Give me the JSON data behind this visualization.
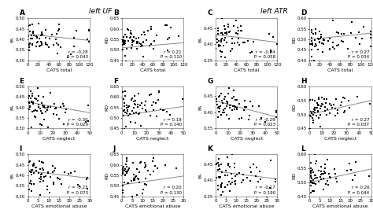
{
  "title_left": "left UF",
  "title_right": "left ATR",
  "panels": [
    {
      "label": "A",
      "col": 0,
      "row": 0,
      "ylabel": "FA",
      "xlabel": "CATS total",
      "xlim": [
        0,
        120
      ],
      "ylim": [
        0.3,
        0.5
      ],
      "yticks": [
        0.3,
        0.35,
        0.4,
        0.45,
        0.5
      ],
      "xticks": [
        0,
        20,
        40,
        60,
        80,
        100,
        120
      ],
      "r": -0.28,
      "p": 0.043,
      "slope": -0.00025,
      "intercept": 0.425
    },
    {
      "label": "B",
      "col": 1,
      "row": 0,
      "ylabel": "RD",
      "xlabel": "CATS total",
      "xlim": [
        0,
        120
      ],
      "ylim": [
        0.45,
        0.65
      ],
      "yticks": [
        0.45,
        0.5,
        0.55,
        0.6,
        0.65
      ],
      "xticks": [
        0,
        20,
        40,
        60,
        80,
        100,
        120
      ],
      "r": 0.21,
      "p": 0.11,
      "slope": 0.0002,
      "intercept": 0.51
    },
    {
      "label": "C",
      "col": 2,
      "row": 0,
      "ylabel": "FA",
      "xlabel": "CATS total",
      "xlim": [
        0,
        120
      ],
      "ylim": [
        0.35,
        0.48
      ],
      "yticks": [
        0.35,
        0.4,
        0.45
      ],
      "xticks": [
        0,
        20,
        40,
        60,
        80,
        100,
        120
      ],
      "r": -0.24,
      "p": 0.058,
      "slope": -0.0002,
      "intercept": 0.43
    },
    {
      "label": "D",
      "col": 3,
      "row": 0,
      "ylabel": "RD",
      "xlabel": "CATS total",
      "xlim": [
        0,
        120
      ],
      "ylim": [
        0.4,
        0.6
      ],
      "yticks": [
        0.4,
        0.45,
        0.5,
        0.55,
        0.6
      ],
      "xticks": [
        0,
        20,
        40,
        60,
        80,
        100,
        120
      ],
      "r": 0.27,
      "p": 0.034,
      "slope": 0.00025,
      "intercept": 0.5
    },
    {
      "label": "E",
      "col": 0,
      "row": 1,
      "ylabel": "FA",
      "xlabel": "CATS neglect",
      "xlim": [
        0,
        50
      ],
      "ylim": [
        0.3,
        0.5
      ],
      "yticks": [
        0.3,
        0.35,
        0.4,
        0.45,
        0.5
      ],
      "xticks": [
        0,
        10,
        20,
        30,
        40,
        50
      ],
      "r": -0.3,
      "p": 0.02,
      "slope": -0.001,
      "intercept": 0.425
    },
    {
      "label": "F",
      "col": 1,
      "row": 1,
      "ylabel": "RD",
      "xlabel": "CATS neglect",
      "xlim": [
        0,
        50
      ],
      "ylim": [
        0.45,
        0.65
      ],
      "yticks": [
        0.45,
        0.5,
        0.55,
        0.6,
        0.65
      ],
      "xticks": [
        0,
        10,
        20,
        30,
        40,
        50
      ],
      "r": 0.19,
      "p": 0.14,
      "slope": 0.0009,
      "intercept": 0.51
    },
    {
      "label": "G",
      "col": 2,
      "row": 1,
      "ylabel": "FA",
      "xlabel": "CATS neglect",
      "xlim": [
        0,
        50
      ],
      "ylim": [
        0.35,
        0.48
      ],
      "yticks": [
        0.35,
        0.4,
        0.45
      ],
      "xticks": [
        0,
        10,
        20,
        30,
        40,
        50
      ],
      "r": -0.29,
      "p": 0.023,
      "slope": -0.001,
      "intercept": 0.435
    },
    {
      "label": "H",
      "col": 3,
      "row": 1,
      "ylabel": "RD",
      "xlabel": "CATS neglect",
      "xlim": [
        0,
        50
      ],
      "ylim": [
        0.45,
        0.6
      ],
      "yticks": [
        0.45,
        0.5,
        0.55,
        0.6
      ],
      "xticks": [
        0,
        10,
        20,
        30,
        40,
        50
      ],
      "r": 0.27,
      "p": 0.037,
      "slope": 0.001,
      "intercept": 0.5
    },
    {
      "label": "I",
      "col": 0,
      "row": 2,
      "ylabel": "FA",
      "xlabel": "CATS emotional abuse",
      "xlim": [
        0,
        30
      ],
      "ylim": [
        0.3,
        0.5
      ],
      "yticks": [
        0.3,
        0.35,
        0.4,
        0.45,
        0.5
      ],
      "xticks": [
        0,
        5,
        10,
        15,
        20,
        25,
        30
      ],
      "r": -0.23,
      "p": 0.073,
      "slope": -0.0012,
      "intercept": 0.422
    },
    {
      "label": "J",
      "col": 1,
      "row": 2,
      "ylabel": "RD",
      "xlabel": "CATS emotional abuse",
      "xlim": [
        0,
        30
      ],
      "ylim": [
        0.45,
        0.65
      ],
      "yticks": [
        0.45,
        0.5,
        0.55,
        0.6,
        0.65
      ],
      "xticks": [
        0,
        5,
        10,
        15,
        20,
        25,
        30
      ],
      "r": 0.2,
      "p": 0.13,
      "slope": 0.0014,
      "intercept": 0.505
    },
    {
      "label": "K",
      "col": 2,
      "row": 2,
      "ylabel": "FA",
      "xlabel": "CATS emotional abuse",
      "xlim": [
        0,
        30
      ],
      "ylim": [
        0.35,
        0.48
      ],
      "yticks": [
        0.35,
        0.4,
        0.45
      ],
      "xticks": [
        0,
        5,
        10,
        15,
        20,
        25,
        30
      ],
      "r": -0.17,
      "p": 0.19,
      "slope": -0.0008,
      "intercept": 0.428
    },
    {
      "label": "L",
      "col": 3,
      "row": 2,
      "ylabel": "RD",
      "xlabel": "CATS emotional abuse",
      "xlim": [
        0,
        30
      ],
      "ylim": [
        0.45,
        0.6
      ],
      "yticks": [
        0.45,
        0.5,
        0.55,
        0.6
      ],
      "xticks": [
        0,
        5,
        10,
        15,
        20,
        25,
        30
      ],
      "r": 0.26,
      "p": 0.044,
      "slope": 0.0016,
      "intercept": 0.5
    }
  ],
  "scatter_color": "#000000",
  "line_color": "#888888",
  "bg_color": "#ffffff",
  "dot_size": 2.5,
  "font_size": 4.5,
  "label_fontsize": 6.5,
  "title_fontsize": 6.5
}
